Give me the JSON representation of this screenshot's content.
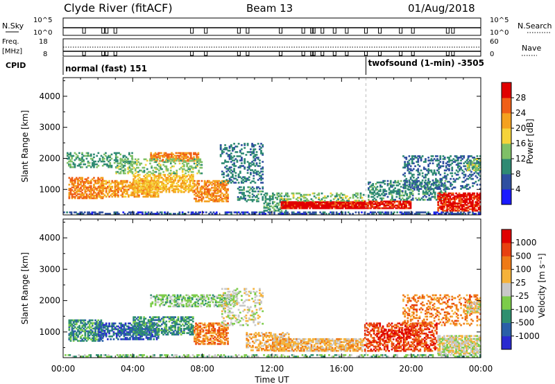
{
  "header": {
    "station": "Clyde River (fitACF)",
    "beam": "Beam 13",
    "date": "01/Aug/2018"
  },
  "status_panels": {
    "nsky_label": "N.Sky",
    "nsky_ticks": [
      "10^5",
      "10^0"
    ],
    "nsearch_label": "N.Search",
    "nsearch_ticks": [
      "10^5",
      "10^0"
    ],
    "freq_label": "Freq.",
    "freq_unit": "[MHz]",
    "freq_ticks": [
      "18",
      "8"
    ],
    "nave_label": "Nave",
    "nave_ticks": [
      "60",
      "0"
    ],
    "cpid_label": "CPID",
    "cpid_modes": [
      {
        "label": "normal (fast) 151",
        "start": 0
      },
      {
        "label": "twofsound (1-min) -3505",
        "start": 17.4
      }
    ]
  },
  "chart_data": [
    {
      "type": "heatmap",
      "quantity": "Power",
      "ylabel": "Slant Range [km]",
      "yticks": [
        1000,
        2000,
        3000,
        4000
      ],
      "ylim": [
        180,
        4600
      ],
      "xlim": [
        0,
        24
      ],
      "colorbar": {
        "label": "Power [dB]",
        "ticks": [
          "4",
          "8",
          "12",
          "16",
          "20",
          "24",
          "28"
        ],
        "colors": [
          "#1a1aff",
          "#2f4fa0",
          "#2f8a73",
          "#7fc067",
          "#f5d33a",
          "#f4a11f",
          "#ef5f17",
          "#e00000"
        ]
      },
      "regions": [
        {
          "t0": 0.0,
          "t1": 24.0,
          "r0": 200,
          "r1": 290,
          "level": 4,
          "density": 0.55
        },
        {
          "t0": 0.3,
          "t1": 2.3,
          "r0": 700,
          "r1": 1400,
          "level": 22,
          "density": 0.6
        },
        {
          "t0": 0.2,
          "t1": 4.0,
          "r0": 1700,
          "r1": 2200,
          "level": 9,
          "density": 0.35
        },
        {
          "t0": 2.0,
          "t1": 5.5,
          "r0": 750,
          "r1": 1300,
          "level": 20,
          "density": 0.65
        },
        {
          "t0": 4.0,
          "t1": 7.5,
          "r0": 900,
          "r1": 1500,
          "level": 18,
          "density": 0.6
        },
        {
          "t0": 5.0,
          "t1": 7.8,
          "r0": 1900,
          "r1": 2200,
          "level": 22,
          "density": 0.7
        },
        {
          "t0": 3.0,
          "t1": 8.0,
          "r0": 1500,
          "r1": 2000,
          "level": 12,
          "density": 0.35
        },
        {
          "t0": 7.5,
          "t1": 9.5,
          "r0": 600,
          "r1": 1300,
          "level": 21,
          "density": 0.6
        },
        {
          "t0": 9.0,
          "t1": 11.5,
          "r0": 1200,
          "r1": 2500,
          "level": 7,
          "density": 0.28
        },
        {
          "t0": 10.0,
          "t1": 11.5,
          "r0": 600,
          "r1": 1100,
          "level": 8,
          "density": 0.4
        },
        {
          "t0": 11.5,
          "t1": 13.0,
          "r0": 300,
          "r1": 900,
          "level": 9,
          "density": 0.45
        },
        {
          "t0": 12.5,
          "t1": 17.3,
          "r0": 380,
          "r1": 620,
          "level": 28,
          "density": 0.95
        },
        {
          "t0": 12.5,
          "t1": 17.3,
          "r0": 620,
          "r1": 900,
          "level": 12,
          "density": 0.35
        },
        {
          "t0": 17.3,
          "t1": 20.0,
          "r0": 380,
          "r1": 640,
          "level": 27,
          "density": 0.8
        },
        {
          "t0": 17.5,
          "t1": 22.0,
          "r0": 650,
          "r1": 1300,
          "level": 8,
          "density": 0.45
        },
        {
          "t0": 19.5,
          "t1": 24.0,
          "r0": 1000,
          "r1": 2100,
          "level": 6,
          "density": 0.3
        },
        {
          "t0": 21.5,
          "t1": 24.0,
          "r0": 300,
          "r1": 900,
          "level": 27,
          "density": 0.75
        },
        {
          "t0": 23.2,
          "t1": 24.0,
          "r0": 1600,
          "r1": 2000,
          "level": 12,
          "density": 0.6
        }
      ]
    },
    {
      "type": "heatmap",
      "quantity": "Velocity",
      "ylabel": "Slant Range [km]",
      "xlabel": "Time UT",
      "xticks": [
        "00:00",
        "04:00",
        "08:00",
        "12:00",
        "16:00",
        "20:00",
        "00:00"
      ],
      "yticks": [
        1000,
        2000,
        3000,
        4000
      ],
      "ylim": [
        180,
        4600
      ],
      "xlim": [
        0,
        24
      ],
      "colorbar": {
        "label": "Velocity [m s⁻¹]",
        "ticks": [
          "1000",
          "500",
          "100",
          "25",
          "-25",
          "-100",
          "-500",
          "-1000"
        ],
        "colors": [
          "#2a2ad0",
          "#2a5fa8",
          "#2f8f6f",
          "#7ccc4a",
          "#c8c8c8",
          "#f5b23a",
          "#ef7a17",
          "#e84010",
          "#e00000"
        ]
      },
      "regions": [
        {
          "t0": 0.0,
          "t1": 24.0,
          "r0": 200,
          "r1": 290,
          "level": 3,
          "density": 0.5
        },
        {
          "t0": 0.3,
          "t1": 2.3,
          "r0": 700,
          "r1": 1400,
          "level": 2,
          "density": 0.6
        },
        {
          "t0": 2.0,
          "t1": 5.5,
          "r0": 750,
          "r1": 1300,
          "level": 1,
          "density": 0.6
        },
        {
          "t0": 4.0,
          "t1": 7.5,
          "r0": 900,
          "r1": 1500,
          "level": 2,
          "density": 0.55
        },
        {
          "t0": 5.0,
          "t1": 10.0,
          "r0": 1800,
          "r1": 2200,
          "level": 3,
          "density": 0.5
        },
        {
          "t0": 7.5,
          "t1": 9.5,
          "r0": 600,
          "r1": 1300,
          "level": 6,
          "density": 0.6
        },
        {
          "t0": 9.0,
          "t1": 11.5,
          "r0": 1200,
          "r1": 2400,
          "level": 4,
          "density": 0.25
        },
        {
          "t0": 10.5,
          "t1": 13.0,
          "r0": 400,
          "r1": 1000,
          "level": 5,
          "density": 0.5
        },
        {
          "t0": 12.0,
          "t1": 17.3,
          "r0": 380,
          "r1": 800,
          "level": 5,
          "density": 0.75
        },
        {
          "t0": 17.3,
          "t1": 21.5,
          "r0": 380,
          "r1": 1300,
          "level": 7,
          "density": 0.55
        },
        {
          "t0": 18.0,
          "t1": 20.0,
          "r0": 800,
          "r1": 1100,
          "level": 8,
          "density": 0.35
        },
        {
          "t0": 19.5,
          "t1": 24.0,
          "r0": 1200,
          "r1": 2200,
          "level": 6,
          "density": 0.3
        },
        {
          "t0": 21.5,
          "t1": 24.0,
          "r0": 300,
          "r1": 900,
          "level": 4,
          "density": 0.75
        },
        {
          "t0": 23.2,
          "t1": 24.0,
          "r0": 1600,
          "r1": 2000,
          "level": 4,
          "density": 0.6
        }
      ]
    }
  ]
}
